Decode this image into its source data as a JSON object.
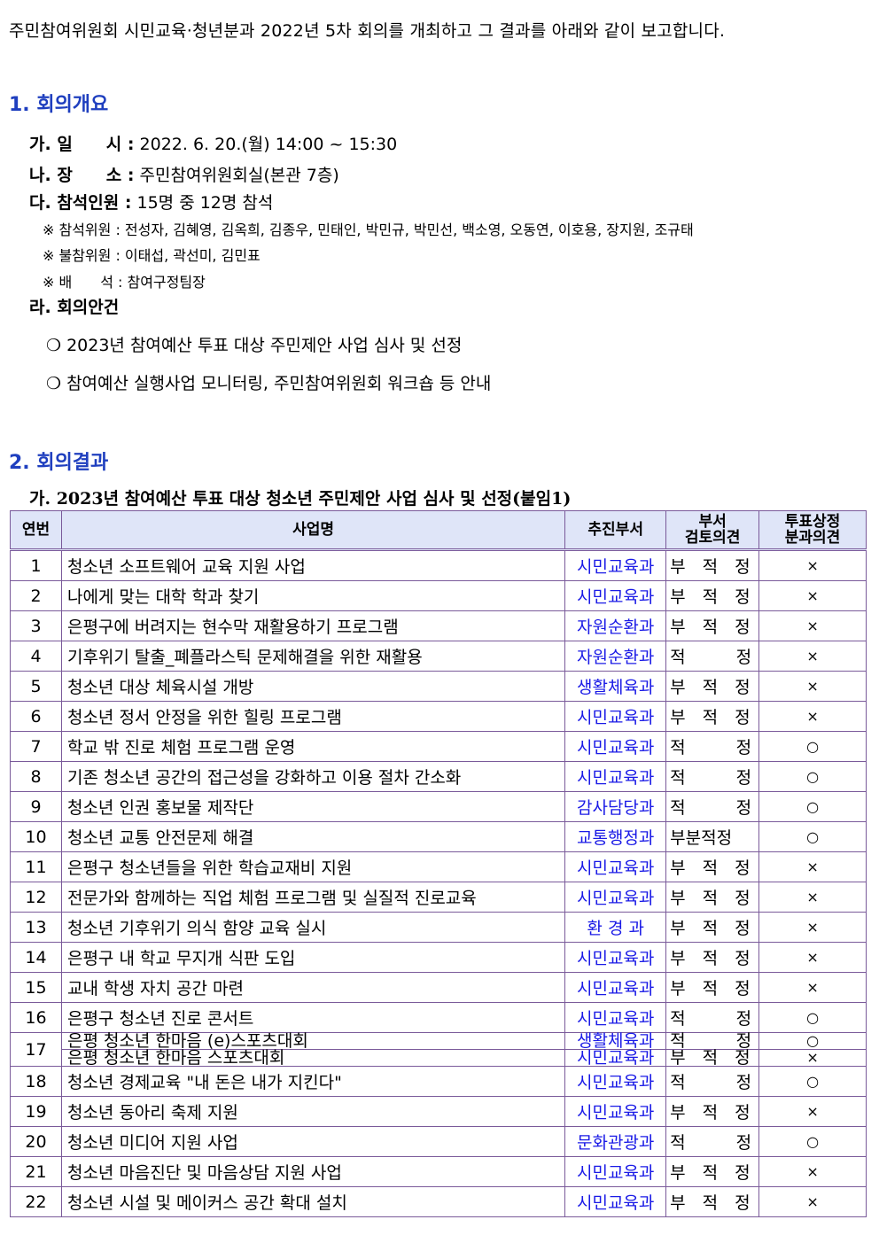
{
  "intro": "주민참여위원회 시민교육·청년분과 2022년 5차 회의를 개최하고 그 결과를 아래와 같이 보고합니다.",
  "s1": {
    "title": "1. 회의개요",
    "date_label": "가. 일　　시 :",
    "date": " 2022. 6. 20.(월) 14:00 ~ 15:30",
    "place_label": "나. 장　　소 :",
    "place": " 주민참여위원회실(본관 7층)",
    "att_label": "다. 참석인원 :",
    "att": " 15명 중 12명 참석",
    "notes": [
      "※ 참석위원 : 전성자, 김혜영, 김옥희, 김종우, 민태인, 박민규, 박민선, 백소영, 오동연, 이호용, 장지원, 조규태",
      "※ 불참위원 : 이태섭, 곽선미, 김민표",
      "※ 배　　석 : 참여구정팀장"
    ],
    "agenda_label": "라. 회의안건",
    "agenda": [
      "❍ 2023년 참여예산 투표 대상 주민제안 사업 심사 및 선정",
      "❍ 참여예산 실행사업 모니터링, 주민참여위원회 워크숍 등 안내"
    ]
  },
  "s2": {
    "title": "2. 회의결과",
    "sub": "가. 2023년 참여예산 투표 대상 청소년 주민제안 사업 심사 및 선정(붙임1)"
  },
  "table": {
    "headers": [
      "연번",
      "사업명",
      "추진부서",
      "부서\n검토의견",
      "투표상정\n분과의견"
    ],
    "rows": [
      [
        "1",
        "청소년 소프트웨어 교육 지원 사업",
        "시민교육과",
        "부 적 정",
        "×"
      ],
      [
        "2",
        "나에게 맞는 대학 학과 찾기",
        "시민교육과",
        "부 적 정",
        "×"
      ],
      [
        "3",
        "은평구에 버려지는 현수막 재활용하기 프로그램",
        "자원순환과",
        "부 적 정",
        "×"
      ],
      [
        "4",
        "기후위기 탈출_폐플라스틱 문제해결을 위한 재활용",
        "자원순환과",
        "적 정",
        "×"
      ],
      [
        "5",
        "청소년 대상 체육시설 개방",
        "생활체육과",
        "부 적 정",
        "×"
      ],
      [
        "6",
        "청소년 정서 안정을 위한 힐링 프로그램",
        "시민교육과",
        "부 적 정",
        "×"
      ],
      [
        "7",
        "학교 밖 진로 체험 프로그램 운영",
        "시민교육과",
        "적 정",
        "○"
      ],
      [
        "8",
        "기존 청소년 공간의 접근성을 강화하고 이용 절차 간소화",
        "시민교육과",
        "적 정",
        "○"
      ],
      [
        "9",
        "청소년 인권 홍보물 제작단",
        "감사담당과",
        "적 정",
        "○"
      ],
      [
        "10",
        "청소년 교통 안전문제 해결",
        "교통행정과",
        "부분적정",
        "○"
      ],
      [
        "11",
        "은평구 청소년들을 위한 학습교재비 지원",
        "시민교육과",
        "부 적 정",
        "×"
      ],
      [
        "12",
        "전문가와 함께하는 직업 체험 프로그램 및 실질적 진로교육",
        "시민교육과",
        "부 적 정",
        "×"
      ],
      [
        "13",
        "청소년 기후위기 의식 함양 교육 실시",
        "환 경 과",
        "부 적 정",
        "×"
      ],
      [
        "14",
        "은평구 내 학교 무지개 식판 도입",
        "시민교육과",
        "부 적 정",
        "×"
      ],
      [
        "15",
        "교내 학생 자치 공간 마련",
        "시민교육과",
        "부 적 정",
        "×"
      ],
      [
        "16",
        "은평구 청소년 진로 콘서트",
        "시민교육과",
        "적 정",
        "○"
      ],
      [
        "17",
        [
          "은평 청소년 한마음 (e)스포츠대회",
          "은평 청소년 한마음 스포츠대회"
        ],
        [
          "생활체육과",
          "시민교육과"
        ],
        [
          "적 정",
          "부 적 정"
        ],
        [
          "○",
          "×"
        ]
      ],
      [
        "18",
        "청소년 경제교육 \"내 돈은 내가 지킨다\"",
        "시민교육과",
        "적 정",
        "○"
      ],
      [
        "19",
        "청소년 동아리 축제 지원",
        "시민교육과",
        "부 적 정",
        "×"
      ],
      [
        "20",
        "청소년 미디어 지원 사업",
        "문화관광과",
        "적 정",
        "○"
      ],
      [
        "21",
        "청소년 마음진단 및 마음상담 지원 사업",
        "시민교육과",
        "부 적 정",
        "×"
      ],
      [
        "22",
        "청소년 시설 및 메이커스 공간 확대 설치",
        "시민교육과",
        "부 적 정",
        "×"
      ]
    ]
  }
}
